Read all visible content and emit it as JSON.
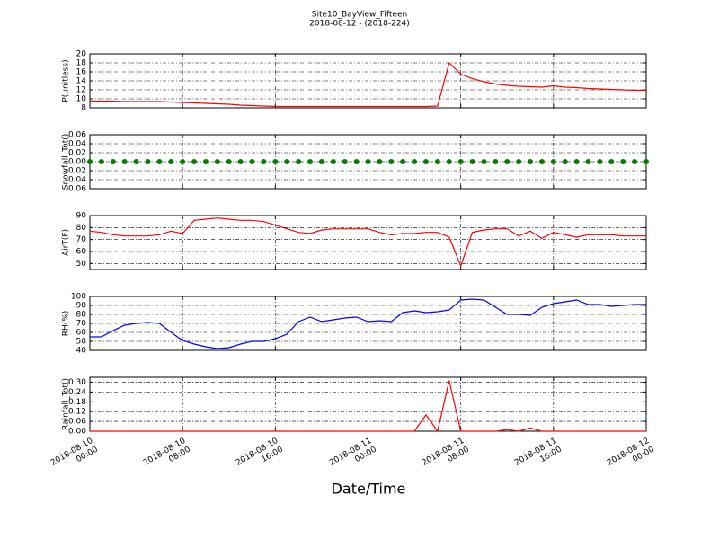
{
  "chart_data": {
    "title": "Site10_BayView_Fifteen",
    "subtitle": "2018-08-12 - (2018-224)",
    "xlabel": "Date/Time",
    "x": [
      "2018-08-10 00:00",
      "2018-08-10 01:00",
      "2018-08-10 02:00",
      "2018-08-10 03:00",
      "2018-08-10 04:00",
      "2018-08-10 05:00",
      "2018-08-10 06:00",
      "2018-08-10 07:00",
      "2018-08-10 08:00",
      "2018-08-10 09:00",
      "2018-08-10 10:00",
      "2018-08-10 11:00",
      "2018-08-10 12:00",
      "2018-08-10 13:00",
      "2018-08-10 14:00",
      "2018-08-10 15:00",
      "2018-08-10 16:00",
      "2018-08-10 17:00",
      "2018-08-10 18:00",
      "2018-08-10 19:00",
      "2018-08-10 20:00",
      "2018-08-10 21:00",
      "2018-08-10 22:00",
      "2018-08-10 23:00",
      "2018-08-11 00:00",
      "2018-08-11 01:00",
      "2018-08-11 02:00",
      "2018-08-11 03:00",
      "2018-08-11 04:00",
      "2018-08-11 05:00",
      "2018-08-11 06:00",
      "2018-08-11 07:00",
      "2018-08-11 08:00",
      "2018-08-11 09:00",
      "2018-08-11 10:00",
      "2018-08-11 11:00",
      "2018-08-11 12:00",
      "2018-08-11 13:00",
      "2018-08-11 14:00",
      "2018-08-11 15:00",
      "2018-08-11 16:00",
      "2018-08-11 17:00",
      "2018-08-11 18:00",
      "2018-08-11 19:00",
      "2018-08-11 20:00",
      "2018-08-11 21:00",
      "2018-08-11 22:00",
      "2018-08-11 23:00",
      "2018-08-12 00:00"
    ],
    "xlim": [
      "2018-08-10 00:00",
      "2018-08-12 00:00"
    ],
    "xticks": [
      {
        "value": "2018-08-10 00:00",
        "label": "2018-08-10\n00:00"
      },
      {
        "value": "2018-08-10 08:00",
        "label": "2018-08-10\n08:00"
      },
      {
        "value": "2018-08-10 16:00",
        "label": "2018-08-10\n16:00"
      },
      {
        "value": "2018-08-11 00:00",
        "label": "2018-08-11\n00:00"
      },
      {
        "value": "2018-08-11 08:00",
        "label": "2018-08-11\n08:00"
      },
      {
        "value": "2018-08-11 16:00",
        "label": "2018-08-11\n16:00"
      },
      {
        "value": "2018-08-12 00:00",
        "label": "2018-08-12\n00:00"
      }
    ],
    "panels": [
      {
        "type": "line",
        "ylabel": "P(unitless)",
        "ylim": [
          8,
          20
        ],
        "yticks": [
          8,
          10,
          12,
          14,
          16,
          18,
          20
        ],
        "grid": true,
        "series": [
          {
            "color": "#ff0000",
            "values": [
              9.5,
              9.5,
              9.5,
              9.4,
              9.4,
              9.4,
              9.4,
              9.3,
              9.2,
              9.1,
              9.0,
              8.9,
              8.8,
              8.6,
              8.5,
              8.4,
              8.3,
              8.3,
              8.3,
              8.3,
              8.3,
              8.3,
              8.3,
              8.3,
              8.3,
              8.3,
              8.3,
              8.3,
              8.3,
              8.3,
              8.4,
              18,
              15.5,
              14.5,
              13.8,
              13.3,
              13,
              12.8,
              12.7,
              12.6,
              12.9,
              12.6,
              12.5,
              12.3,
              12.2,
              12.1,
              12,
              11.9,
              11.9
            ]
          }
        ]
      },
      {
        "type": "scatter",
        "ylabel": "Snowfall_Tot()",
        "ylim": [
          -0.06,
          0.06
        ],
        "yticks": [
          -0.06,
          -0.04,
          -0.02,
          {
            "value": 0,
            "label": "0.00"
          },
          0.02,
          0.04,
          0.06
        ],
        "grid": true,
        "series": [
          {
            "color": "#008000",
            "values": [
              0,
              0,
              0,
              0,
              0,
              0,
              0,
              0,
              0,
              0,
              0,
              0,
              0,
              0,
              0,
              0,
              0,
              0,
              0,
              0,
              0,
              0,
              0,
              0,
              0,
              0,
              0,
              0,
              0,
              0,
              0,
              0,
              0,
              0,
              0,
              0,
              0,
              0,
              0,
              0,
              0,
              0,
              0,
              0,
              0,
              0,
              0,
              0,
              0
            ]
          }
        ]
      },
      {
        "type": "line",
        "ylabel": "AirT(F)",
        "ylim": [
          45,
          90
        ],
        "yticks": [
          50,
          60,
          70,
          80,
          90
        ],
        "grid": true,
        "series": [
          {
            "color": "#ff0000",
            "values": [
              77,
              76,
              74,
              73,
              73,
              73,
              74,
              77,
              75,
              86,
              87,
              88,
              87,
              86,
              86,
              85,
              82,
              79,
              76,
              75,
              78,
              79,
              79,
              79,
              79,
              76,
              74,
              75,
              75,
              76,
              76,
              72,
              48,
              76,
              78,
              79,
              79,
              73,
              77,
              71,
              76,
              74,
              72,
              74,
              74,
              74,
              73,
              73,
              73
            ]
          }
        ]
      },
      {
        "type": "line",
        "ylabel": "RH(%)",
        "ylim": [
          40,
          100
        ],
        "yticks": [
          40,
          50,
          60,
          70,
          80,
          90,
          100
        ],
        "grid": true,
        "series": [
          {
            "color": "#0000ff",
            "values": [
              55,
              55,
              62,
              68,
              70,
              71,
              70,
              60,
              51,
              47,
              44,
              42,
              43,
              47,
              50,
              50,
              53,
              58,
              72,
              77,
              72,
              74,
              76,
              77,
              72,
              73,
              72,
              82,
              84,
              82,
              83,
              85,
              96,
              97,
              96,
              88,
              80,
              80,
              79,
              88,
              92,
              94,
              96,
              91,
              91,
              89,
              90,
              91,
              91
            ]
          }
        ]
      },
      {
        "type": "line",
        "ylabel": "Rainfall_Tot()",
        "ylim": [
          0,
          0.33
        ],
        "yticks": [
          {
            "value": 0,
            "label": "0.00"
          },
          0.06,
          0.12,
          0.18,
          0.24,
          {
            "value": 0.3,
            "label": "0.30"
          }
        ],
        "grid": true,
        "series": [
          {
            "color": "#ff0000",
            "values": [
              0,
              0,
              0,
              0,
              0,
              0,
              0,
              0,
              0,
              0,
              0,
              0,
              0,
              0,
              0,
              0,
              0,
              0,
              0,
              0,
              0,
              0,
              0,
              0,
              0,
              0,
              0,
              0,
              0,
              0.1,
              0,
              0.31,
              0,
              0,
              0,
              0,
              0.01,
              0,
              0.02,
              0,
              0,
              0,
              0,
              0,
              0,
              0,
              0,
              0,
              0
            ]
          }
        ]
      }
    ]
  }
}
